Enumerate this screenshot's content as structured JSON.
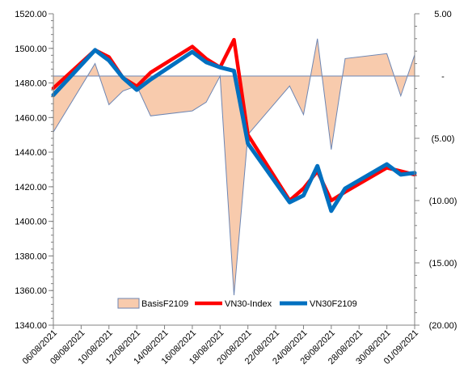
{
  "chart_data": {
    "type": "line",
    "title": "",
    "xlabel": "",
    "ylabel": "",
    "y_left": {
      "range": [
        1340,
        1520
      ],
      "ticks": [
        1340,
        1360,
        1380,
        1400,
        1420,
        1440,
        1460,
        1480,
        1500,
        1520
      ],
      "tick_labels": [
        "1340.00",
        "1360.00",
        "1380.00",
        "1400.00",
        "1420.00",
        "1440.00",
        "1460.00",
        "1480.00",
        "1500.00",
        "1520.00"
      ]
    },
    "y_right": {
      "range": [
        -20,
        5
      ],
      "ticks": [
        5,
        0,
        -5,
        -10,
        -15,
        -20
      ],
      "tick_labels": [
        "5.00",
        "-",
        "(5.00)",
        "(10.00)",
        "(15.00)",
        "(20.00)"
      ]
    },
    "x_axis": {
      "range": [
        "2021-08-06",
        "2021-09-01"
      ],
      "tick_labels": [
        "06/08/2021",
        "08/08/2021",
        "10/08/2021",
        "12/08/2021",
        "14/08/2021",
        "16/08/2021",
        "18/08/2021",
        "20/08/2021",
        "22/08/2021",
        "24/08/2021",
        "26/08/2021",
        "28/08/2021",
        "30/08/2021",
        "01/09/2021"
      ]
    },
    "grid": false,
    "legend": {
      "placement": "bottom-center",
      "entries": [
        "BasisF2109",
        "VN30-Index",
        "VN30F2109"
      ]
    },
    "series": [
      {
        "name": "BasisF2109",
        "type": "area",
        "axis": "right",
        "color": "#F8CBAD",
        "line_color": "#6E86B3",
        "x": [
          "2021-08-06",
          "2021-08-09",
          "2021-08-10",
          "2021-08-11",
          "2021-08-12",
          "2021-08-13",
          "2021-08-16",
          "2021-08-17",
          "2021-08-18",
          "2021-08-19",
          "2021-08-20",
          "2021-08-23",
          "2021-08-24",
          "2021-08-25",
          "2021-08-26",
          "2021-08-27",
          "2021-08-30",
          "2021-08-31",
          "2021-09-01"
        ],
        "y": [
          -4.5,
          1.0,
          -2.3,
          -1.2,
          -0.8,
          -3.2,
          -2.8,
          -2.1,
          0.0,
          -17.6,
          -4.7,
          -0.8,
          -3.1,
          3.0,
          -5.9,
          1.4,
          1.8,
          -1.6,
          1.7
        ]
      },
      {
        "name": "VN30-Index",
        "type": "line",
        "axis": "left",
        "color": "#FF0000",
        "x": [
          "2021-08-06",
          "2021-08-09",
          "2021-08-10",
          "2021-08-11",
          "2021-08-12",
          "2021-08-13",
          "2021-08-16",
          "2021-08-17",
          "2021-08-18",
          "2021-08-19",
          "2021-08-20",
          "2021-08-23",
          "2021-08-24",
          "2021-08-25",
          "2021-08-26",
          "2021-08-27",
          "2021-08-30",
          "2021-08-31",
          "2021-09-01"
        ],
        "y": [
          1477,
          1499,
          1495,
          1483,
          1478,
          1486,
          1501,
          1494,
          1489,
          1505,
          1450,
          1412,
          1419,
          1429,
          1412,
          1417,
          1431,
          1429,
          1427
        ]
      },
      {
        "name": "VN30F2109",
        "type": "line",
        "axis": "left",
        "color": "#0070C0",
        "x": [
          "2021-08-06",
          "2021-08-09",
          "2021-08-10",
          "2021-08-11",
          "2021-08-12",
          "2021-08-13",
          "2021-08-16",
          "2021-08-17",
          "2021-08-18",
          "2021-08-19",
          "2021-08-20",
          "2021-08-23",
          "2021-08-24",
          "2021-08-25",
          "2021-08-26",
          "2021-08-27",
          "2021-08-30",
          "2021-08-31",
          "2021-09-01"
        ],
        "y": [
          1473,
          1499,
          1493,
          1483,
          1476,
          1482,
          1498,
          1492,
          1489,
          1487,
          1445,
          1411,
          1415,
          1432,
          1406,
          1419,
          1433,
          1427,
          1428
        ]
      }
    ]
  }
}
